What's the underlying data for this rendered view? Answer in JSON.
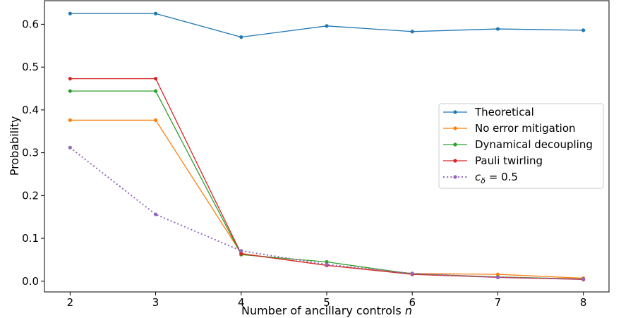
{
  "chart_data": {
    "type": "line",
    "title": "",
    "xlabel": "Number of ancillary controls",
    "xlabel_var": "n",
    "ylabel": "Probability",
    "x": [
      2,
      3,
      4,
      5,
      6,
      7,
      8
    ],
    "xlim": [
      1.7,
      8.3
    ],
    "ylim": [
      -0.025,
      0.655
    ],
    "xticks": [
      2,
      3,
      4,
      5,
      6,
      7,
      8
    ],
    "yticks": [
      0.0,
      0.1,
      0.2,
      0.3,
      0.4,
      0.5,
      0.6
    ],
    "ytick_labels": [
      "0.0",
      "0.1",
      "0.2",
      "0.3",
      "0.4",
      "0.5",
      "0.6"
    ],
    "grid": false,
    "legend_position": "center-right",
    "series": [
      {
        "name": "Theoretical",
        "color": "#1f77b4",
        "style": "solid",
        "values": [
          0.625,
          0.625,
          0.57,
          0.596,
          0.583,
          0.589,
          0.586
        ]
      },
      {
        "name": "No error mitigation",
        "color": "#ff7f0e",
        "style": "solid",
        "values": [
          0.376,
          0.376,
          0.065,
          0.037,
          0.018,
          0.016,
          0.007
        ]
      },
      {
        "name": "Dynamical decoupling",
        "color": "#2ca02c",
        "style": "solid",
        "values": [
          0.444,
          0.444,
          0.062,
          0.045,
          0.017,
          0.01,
          0.005
        ]
      },
      {
        "name": "Pauli twirling",
        "color": "#d62728",
        "style": "solid",
        "values": [
          0.473,
          0.473,
          0.064,
          0.037,
          0.016,
          0.009,
          0.004
        ]
      },
      {
        "name": "c_δ = 0.5",
        "legend_base": "c",
        "legend_sub": "δ",
        "legend_rest": " = 0.5",
        "color": "#9467bd",
        "style": "dotted",
        "values": [
          0.312,
          0.156,
          0.071,
          0.039,
          0.018,
          0.009,
          0.005
        ]
      }
    ]
  }
}
